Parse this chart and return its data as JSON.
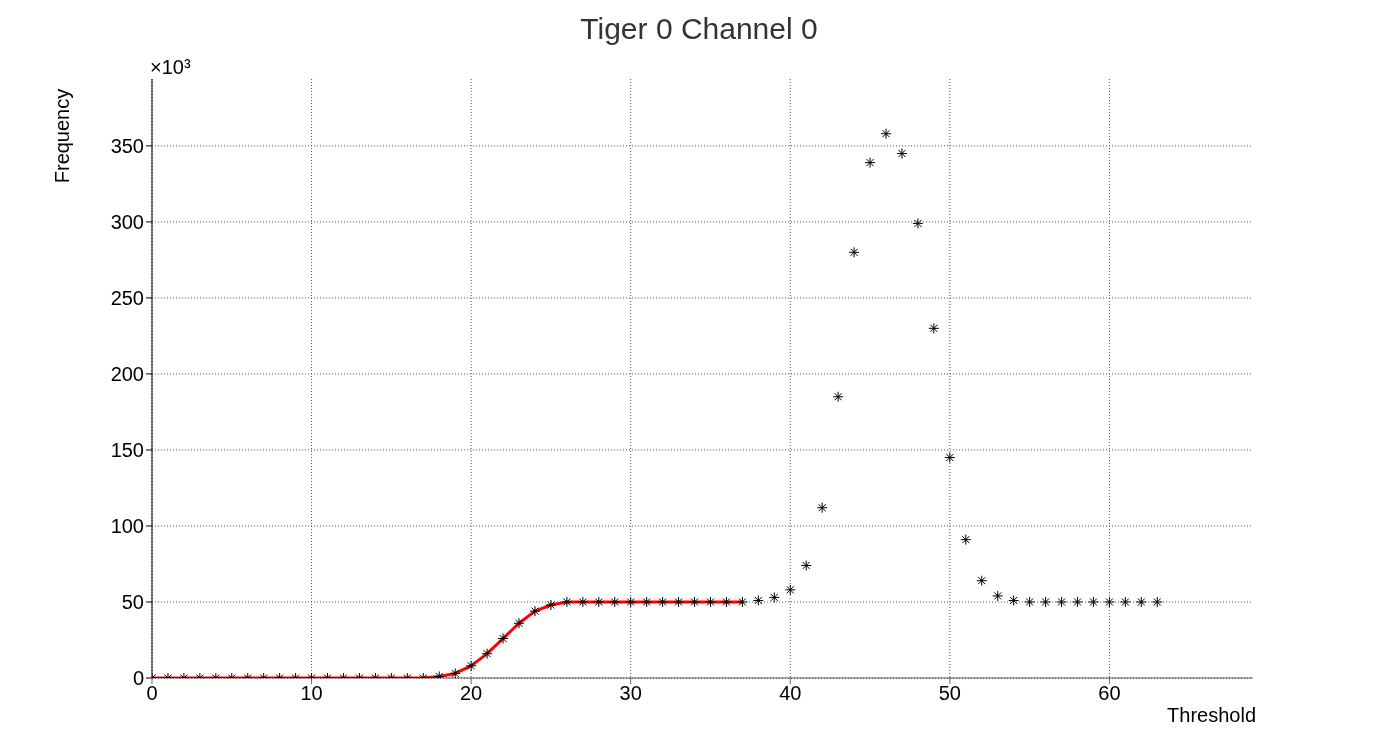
{
  "chart_data": {
    "type": "scatter",
    "title": "Tiger 0 Channel 0",
    "xlabel": "Threshold",
    "ylabel": "Frequency",
    "annotations": [
      "×10³"
    ],
    "xlim": [
      0,
      69
    ],
    "xticks": [
      0,
      10,
      20,
      30,
      40,
      50,
      60
    ],
    "ylim": [
      0,
      394
    ],
    "yticks": [
      0,
      50,
      100,
      150,
      200,
      250,
      300,
      350
    ],
    "grid": true,
    "series": [
      {
        "type": "line",
        "color": "#ff0000",
        "marker": "none",
        "x": [
          0,
          1,
          2,
          3,
          4,
          5,
          6,
          7,
          8,
          9,
          10,
          11,
          12,
          13,
          14,
          15,
          16,
          17,
          18,
          19,
          20,
          21,
          22,
          23,
          24,
          25,
          26,
          27,
          28,
          29,
          30,
          31,
          32,
          33,
          34,
          35,
          36,
          37
        ],
        "values": [
          0,
          0,
          0,
          0,
          0,
          0,
          0,
          0,
          0,
          0,
          0,
          0,
          0,
          0,
          0,
          0,
          0,
          0,
          1,
          3,
          8,
          16,
          26,
          36,
          44,
          48,
          50,
          50,
          50,
          50,
          50,
          50,
          50,
          50,
          50,
          50,
          50,
          50
        ]
      },
      {
        "color": "#000000",
        "marker": "cross",
        "x": [
          0,
          1,
          2,
          3,
          4,
          5,
          6,
          7,
          8,
          9,
          10,
          11,
          12,
          13,
          14,
          15,
          16,
          17,
          18,
          19,
          20,
          21,
          22,
          23,
          24,
          25,
          26,
          27,
          28,
          29,
          30,
          31,
          32,
          33,
          34,
          35,
          36,
          37,
          38,
          39,
          40,
          41,
          42,
          43,
          44,
          45,
          46,
          47,
          48,
          49,
          50,
          51,
          52,
          53,
          54,
          55,
          56,
          57,
          58,
          59,
          60,
          61,
          62,
          63
        ],
        "values": [
          0,
          0,
          0,
          0,
          0,
          0,
          0,
          0,
          0,
          0,
          0,
          0,
          0,
          0,
          0,
          0,
          0,
          0,
          1,
          3,
          8,
          16,
          26,
          36,
          44,
          48,
          50,
          50,
          50,
          50,
          50,
          50,
          50,
          50,
          50,
          50,
          50,
          50,
          51,
          53,
          58,
          74,
          112,
          185,
          280,
          339,
          358,
          345,
          299,
          230,
          145,
          91,
          64,
          54,
          51,
          50,
          50,
          50,
          50,
          50,
          50,
          50,
          50,
          50
        ]
      }
    ]
  }
}
